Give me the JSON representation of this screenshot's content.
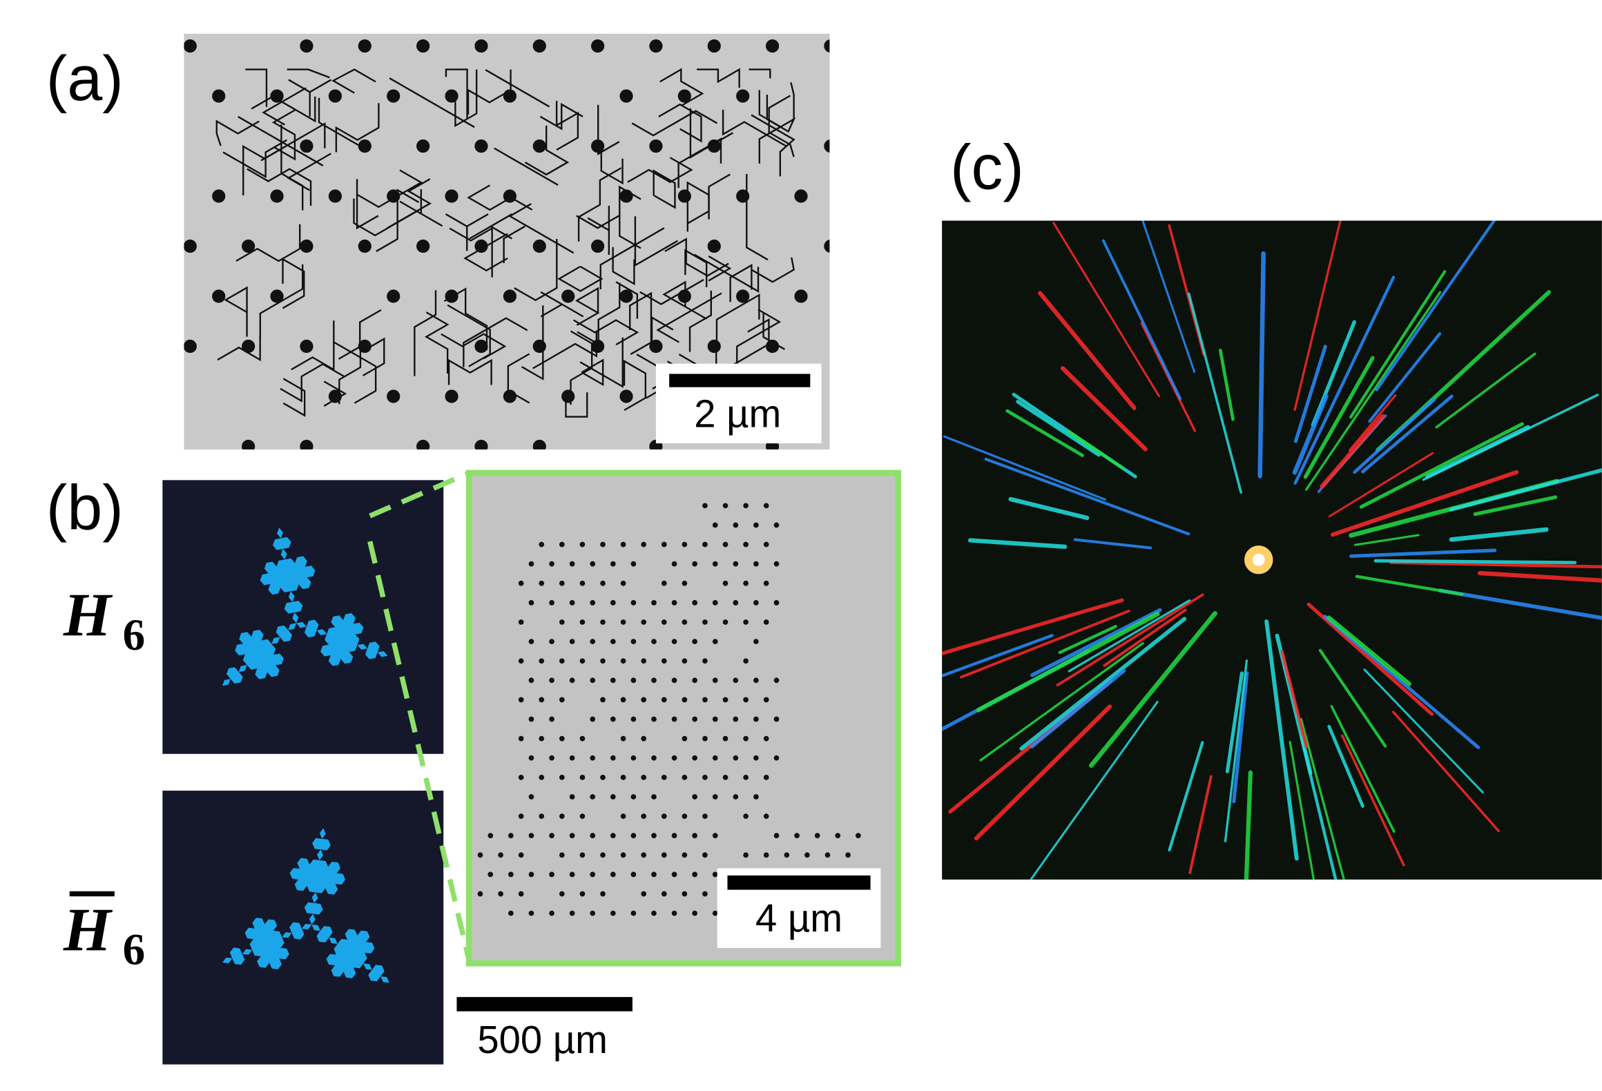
{
  "panels": {
    "a": {
      "label": "(a)",
      "scale_bar": "2 µm"
    },
    "b": {
      "label": "(b)",
      "rows": [
        {
          "symbol": "H",
          "subscript": "6"
        },
        {
          "symbol": "H",
          "subscript": "6"
        }
      ],
      "inset_scale_bar": "4 µm",
      "scale_bar": "500 µm"
    },
    "c": {
      "label": "(c)"
    }
  }
}
